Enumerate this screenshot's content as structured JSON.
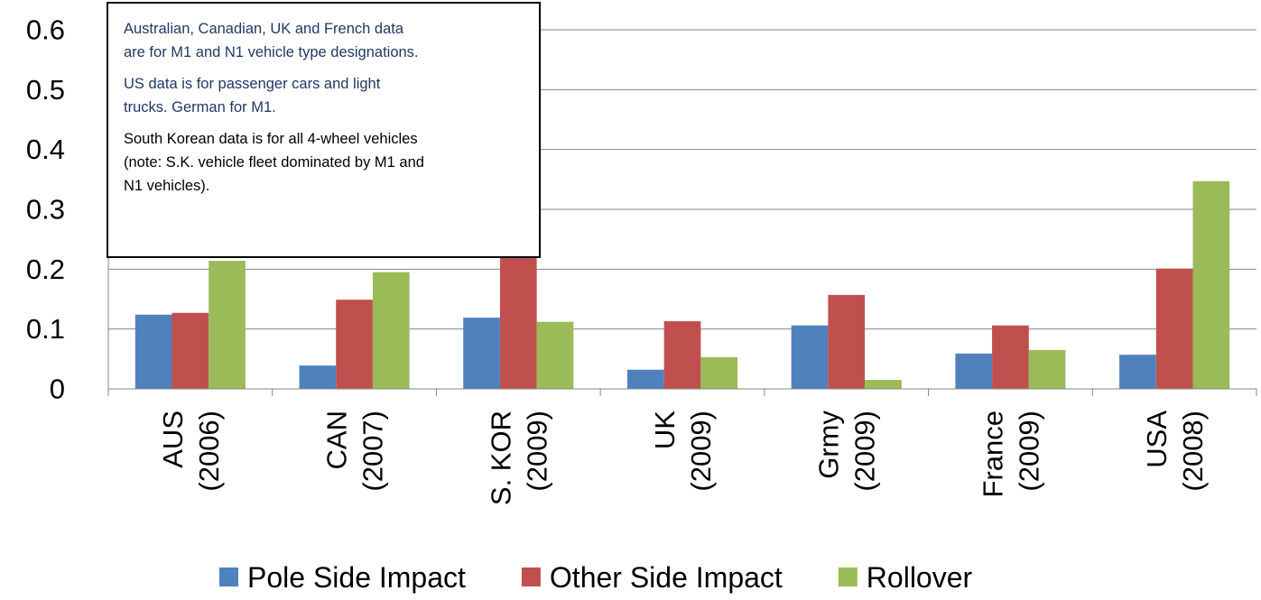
{
  "chart_data": {
    "type": "bar",
    "categories": [
      [
        "AUS",
        "(2006)"
      ],
      [
        "CAN",
        "(2007)"
      ],
      [
        "S. KOR",
        "(2009)"
      ],
      [
        "UK",
        "(2009)"
      ],
      [
        "Grmy",
        "(2009)"
      ],
      [
        "France",
        "(2009)"
      ],
      [
        "USA",
        "(2008)"
      ]
    ],
    "series": [
      {
        "name": "Pole Side Impact",
        "color": "#4f81bd",
        "values": [
          0.124,
          0.039,
          0.119,
          0.032,
          0.106,
          0.059,
          0.057
        ]
      },
      {
        "name": "Other Side Impact",
        "color": "#c0504d",
        "values": [
          0.127,
          0.149,
          0.23,
          0.113,
          0.157,
          0.106,
          0.201
        ]
      },
      {
        "name": "Rollover",
        "color": "#9bbb59",
        "values": [
          0.214,
          0.195,
          0.112,
          0.053,
          0.015,
          0.065,
          0.347
        ]
      }
    ],
    "ylim": [
      0,
      0.6
    ],
    "yticks": [
      0,
      0.1,
      0.2,
      0.3,
      0.4,
      0.5,
      0.6
    ],
    "grid": true,
    "legend": "bottom",
    "annotation": {
      "paragraphs": [
        {
          "color": "#1f3864",
          "lines": [
            "Australian, Canadian, UK and French data",
            "are for M1 and N1 vehicle type designations."
          ]
        },
        {
          "color": "#1f3864",
          "lines": [
            "US data is for passenger cars and light",
            "trucks.  German for M1."
          ]
        },
        {
          "color": "#000000",
          "lines": [
            "South Korean data is for all 4-wheel vehicles",
            "(note: S.K. vehicle fleet dominated by M1 and",
            "N1 vehicles)."
          ]
        }
      ]
    }
  }
}
